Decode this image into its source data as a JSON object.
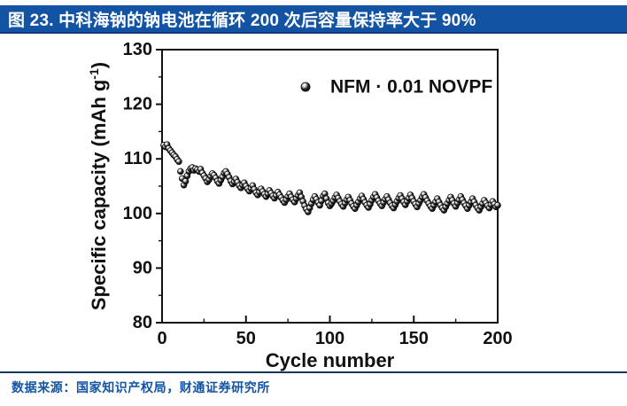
{
  "header": {
    "title": "图 23. 中科海钠的钠电池在循环 200 次后容量保持率大于 90%"
  },
  "footer": {
    "source": "数据来源：国家知识产权局，财通证券研究所"
  },
  "colors": {
    "header_bar": "#1254A3",
    "header_text": "#ffffff",
    "divider": "#17375E",
    "source_text": "#1254A3",
    "marker": "#000000",
    "axis": "#111111"
  },
  "chart_data": {
    "type": "scatter",
    "title": "",
    "xlabel": "Cycle number",
    "ylabel": "Specific capacity (mAh g⁻¹)",
    "xlim": [
      0,
      200
    ],
    "ylim": [
      80,
      130
    ],
    "x_ticks": [
      0,
      50,
      100,
      150,
      200
    ],
    "x_minor_ticks": [
      25,
      75,
      125,
      175
    ],
    "y_ticks": [
      80,
      90,
      100,
      110,
      120,
      130
    ],
    "y_minor_ticks": [
      85,
      95,
      105,
      115,
      125
    ],
    "grid": false,
    "legend_position": "top-right-inside",
    "marker_style": "black-sphere-with-highlight",
    "cycle_start": 1,
    "series": [
      {
        "name": "NFM · 0.01 NOVPF",
        "capacities": [
          112.5,
          112.2,
          112.6,
          111.9,
          111.5,
          111.1,
          110.7,
          110.4,
          109.9,
          109.5,
          107.7,
          106.4,
          105.2,
          105.9,
          106.9,
          107.7,
          108.2,
          108.4,
          107.9,
          108.2,
          108.0,
          107.7,
          108.1,
          107.4,
          106.9,
          106.4,
          105.8,
          106.2,
          106.8,
          107.3,
          107.0,
          106.5,
          105.9,
          105.5,
          106.1,
          106.7,
          107.4,
          107.7,
          107.2,
          106.6,
          105.9,
          105.4,
          105.8,
          106.3,
          105.7,
          105.1,
          104.7,
          105.2,
          105.6,
          105.0,
          104.5,
          104.1,
          104.6,
          105.1,
          104.4,
          103.8,
          103.4,
          103.9,
          104.5,
          104.0,
          103.5,
          103.1,
          103.6,
          104.2,
          103.7,
          103.2,
          102.8,
          103.3,
          103.9,
          103.4,
          102.9,
          102.4,
          102.0,
          102.5,
          103.1,
          103.6,
          103.0,
          102.5,
          102.1,
          102.7,
          103.3,
          103.8,
          103.0,
          102.2,
          101.4,
          100.8,
          100.3,
          101.0,
          101.8,
          102.5,
          103.1,
          102.6,
          102.0,
          101.5,
          102.3,
          103.2,
          103.6,
          102.7,
          101.9,
          101.4,
          101.8,
          102.3,
          102.9,
          103.4,
          102.8,
          102.2,
          101.7,
          101.3,
          101.9,
          102.5,
          103.0,
          102.4,
          101.8,
          101.3,
          100.9,
          101.5,
          102.1,
          102.7,
          103.2,
          102.6,
          102.0,
          101.5,
          101.1,
          101.7,
          102.4,
          103.0,
          103.5,
          102.9,
          102.3,
          101.8,
          101.4,
          102.0,
          102.6,
          103.1,
          102.5,
          101.9,
          101.4,
          101.0,
          101.6,
          102.2,
          102.8,
          103.3,
          102.7,
          102.1,
          101.6,
          102.2,
          102.8,
          103.4,
          102.8,
          102.2,
          101.7,
          101.2,
          101.8,
          102.4,
          103.0,
          103.5,
          102.9,
          102.3,
          101.8,
          101.3,
          100.9,
          101.5,
          102.1,
          102.7,
          102.1,
          101.5,
          101.0,
          100.6,
          101.2,
          101.8,
          102.4,
          103.0,
          102.4,
          101.8,
          101.3,
          101.9,
          102.5,
          103.1,
          102.5,
          101.9,
          101.4,
          100.9,
          101.5,
          102.1,
          102.7,
          102.1,
          101.5,
          101.0,
          100.6,
          101.2,
          101.8,
          102.4,
          101.9,
          101.4,
          101.0,
          101.6,
          102.2,
          101.7,
          101.2,
          101.5
        ]
      }
    ]
  }
}
